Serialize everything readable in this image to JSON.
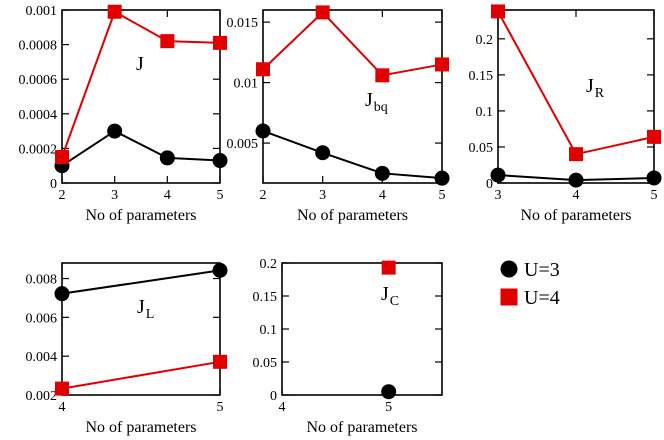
{
  "legend": {
    "entries": [
      {
        "label": "U=3",
        "color": "#000000",
        "marker": "circle"
      },
      {
        "label": "U=4",
        "color": "#e00000",
        "marker": "square"
      }
    ]
  },
  "chart_data": [
    {
      "id": "J",
      "type": "line",
      "label": {
        "main": "J",
        "sub": ""
      },
      "xlabel": "No of parameters",
      "xlim": [
        2,
        5
      ],
      "ylim": [
        0,
        0.001
      ],
      "xticks": [
        2,
        3,
        4,
        5
      ],
      "xtick_labels": [
        "2",
        "3",
        "4",
        "5"
      ],
      "yticks": [
        0,
        0.0002,
        0.0004,
        0.0006,
        0.0008,
        0.001
      ],
      "ytick_labels": [
        "0",
        "0.0002",
        "0.0004",
        "0.0006",
        "0.0008",
        "0.001"
      ],
      "series": [
        {
          "name": "U=3",
          "x": [
            2,
            3,
            4,
            5
          ],
          "y": [
            0.0001,
            0.0003,
            0.000145,
            0.00013
          ]
        },
        {
          "name": "U=4",
          "x": [
            2,
            3,
            4,
            5
          ],
          "y": [
            0.00015,
            0.00099,
            0.00082,
            0.00081
          ]
        }
      ]
    },
    {
      "id": "Jbq",
      "type": "line",
      "label": {
        "main": "J",
        "sub": "bq"
      },
      "xlabel": "No of parameters",
      "xlim": [
        2,
        5
      ],
      "ylim": [
        0.0017,
        0.016
      ],
      "xticks": [
        2,
        3,
        4,
        5
      ],
      "xtick_labels": [
        "2",
        "3",
        "4",
        "5"
      ],
      "yticks": [
        0.005,
        0.01,
        0.015
      ],
      "ytick_labels": [
        "0.005",
        "0.01",
        "0.015"
      ],
      "series": [
        {
          "name": "U=3",
          "x": [
            2,
            3,
            4,
            5
          ],
          "y": [
            0.006,
            0.0042,
            0.0025,
            0.0021
          ]
        },
        {
          "name": "U=4",
          "x": [
            2,
            3,
            4,
            5
          ],
          "y": [
            0.0111,
            0.0158,
            0.0106,
            0.0115
          ]
        }
      ]
    },
    {
      "id": "JR",
      "type": "line",
      "label": {
        "main": "J",
        "sub": "R"
      },
      "xlabel": "No of parameters",
      "xlim": [
        3,
        5
      ],
      "ylim": [
        0,
        0.24
      ],
      "xticks": [
        3,
        4,
        5
      ],
      "xtick_labels": [
        "3",
        "4",
        "5"
      ],
      "yticks": [
        0,
        0.05,
        0.1,
        0.15,
        0.2
      ],
      "ytick_labels": [
        "0",
        "0.05",
        "0.1",
        "0.15",
        "0.2"
      ],
      "series": [
        {
          "name": "U=3",
          "x": [
            3,
            4,
            5
          ],
          "y": [
            0.011,
            0.004,
            0.007
          ]
        },
        {
          "name": "U=4",
          "x": [
            3,
            4,
            5
          ],
          "y": [
            0.238,
            0.04,
            0.064
          ]
        }
      ]
    },
    {
      "id": "JL",
      "type": "line",
      "label": {
        "main": "J",
        "sub": "L"
      },
      "xlabel": "No of parameters",
      "xlim": [
        4,
        5
      ],
      "ylim": [
        0.002,
        0.0088
      ],
      "xticks": [
        4,
        5
      ],
      "xtick_labels": [
        "4",
        "5"
      ],
      "yticks": [
        0.002,
        0.004,
        0.006,
        0.008
      ],
      "ytick_labels": [
        "0.002",
        "0.004",
        "0.006",
        "0.008"
      ],
      "series": [
        {
          "name": "U=3",
          "x": [
            4,
            5
          ],
          "y": [
            0.00722,
            0.00842
          ]
        },
        {
          "name": "U=4",
          "x": [
            4,
            5
          ],
          "y": [
            0.00233,
            0.00371
          ]
        }
      ]
    },
    {
      "id": "JC",
      "type": "scatter",
      "label": {
        "main": "J",
        "sub": "C"
      },
      "xlabel": "No of parameters",
      "xlim": [
        4,
        5.5
      ],
      "ylim": [
        0,
        0.2
      ],
      "xticks": [
        4,
        5
      ],
      "xtick_labels": [
        "4",
        "5"
      ],
      "yticks": [
        0,
        0.05,
        0.1,
        0.15,
        0.2
      ],
      "ytick_labels": [
        "0",
        "0.05",
        "0.1",
        "0.15",
        "0.2"
      ],
      "series": [
        {
          "name": "U=3",
          "x": [
            5
          ],
          "y": [
            0.005
          ]
        },
        {
          "name": "U=4",
          "x": [
            5
          ],
          "y": [
            0.193
          ]
        }
      ]
    }
  ]
}
